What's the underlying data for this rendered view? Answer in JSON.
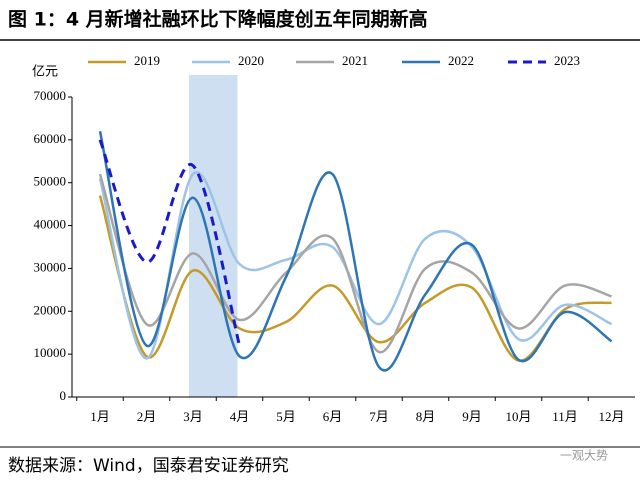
{
  "chart_data": {
    "type": "line",
    "title": "图 1：4 月新增社融环比下降幅度创五年同期新高",
    "y_label": "亿元",
    "source": "数据来源：Wind，国泰君安证券研究",
    "watermark": "一观大势",
    "categories": [
      "1月",
      "2月",
      "3月",
      "4月",
      "5月",
      "6月",
      "7月",
      "8月",
      "9月",
      "10月",
      "11月",
      "12月"
    ],
    "series": [
      {
        "name": "2019",
        "color": "#C49A28",
        "values": [
          47000,
          9500,
          29500,
          16000,
          17500,
          26000,
          12800,
          22000,
          25500,
          8500,
          20500,
          22000
        ]
      },
      {
        "name": "2020",
        "color": "#9DC3E6",
        "values": [
          51000,
          9000,
          52000,
          31000,
          32000,
          35000,
          17000,
          37000,
          35000,
          13500,
          21500,
          17000
        ]
      },
      {
        "name": "2021",
        "color": "#A5A5A5",
        "values": [
          52000,
          17000,
          33500,
          18000,
          29000,
          37000,
          10500,
          30000,
          29000,
          16000,
          26000,
          23500
        ]
      },
      {
        "name": "2022",
        "color": "#2E75B6",
        "values": [
          62000,
          12000,
          46500,
          9500,
          28000,
          52000,
          7000,
          24000,
          35500,
          8700,
          19800,
          13000
        ]
      },
      {
        "name": "2023",
        "color": "#1A1ACC",
        "style": "dashed",
        "values": [
          60000,
          31500,
          54000,
          12000,
          null,
          null,
          null,
          null,
          null,
          null,
          null,
          null
        ]
      }
    ],
    "ylim": [
      0,
      70000
    ],
    "yticks": [
      0,
      10000,
      20000,
      30000,
      40000,
      50000,
      60000,
      70000
    ],
    "legend": "top"
  }
}
